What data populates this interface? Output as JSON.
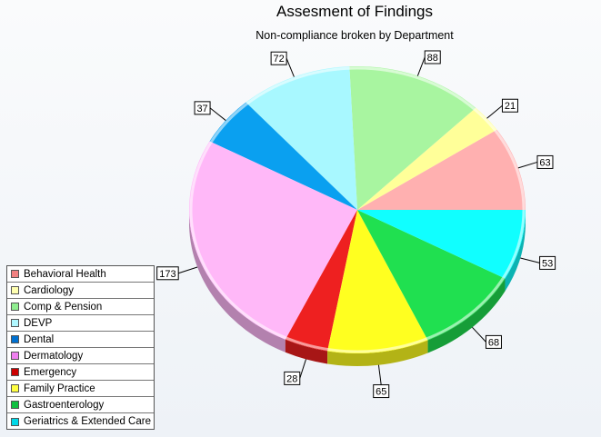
{
  "chart_data": {
    "type": "pie",
    "title": "Assesment of Findings",
    "subtitle": "Non-compliance broken by Department",
    "legend_position": "bottom-left",
    "categories": [
      "Behavioral Health",
      "Cardiology",
      "Comp & Pension",
      "DEVP",
      "Dental",
      "Dermatology",
      "Emergency",
      "Family Practice",
      "Gastroenterology",
      "Geriatrics & Extended Care"
    ],
    "series": [
      {
        "values": [
          63,
          21,
          88,
          72,
          37,
          173,
          28,
          65,
          68,
          53
        ]
      }
    ],
    "colors": [
      "#ffb0b0",
      "#ffff99",
      "#a8f5a0",
      "#a8f8ff",
      "#0aa0f0",
      "#ffb8f8",
      "#ee2020",
      "#ffff20",
      "#20e050",
      "#10ffff"
    ],
    "legend_colors": [
      "#f08080",
      "#ffffb0",
      "#90ee90",
      "#b0f8ff",
      "#0070d0",
      "#f080f0",
      "#cc0000",
      "#ffff40",
      "#10c040",
      "#00d8e8"
    ],
    "start_angle_deg": 0,
    "direction": "counterclockwise",
    "style": "3d-tilted"
  }
}
